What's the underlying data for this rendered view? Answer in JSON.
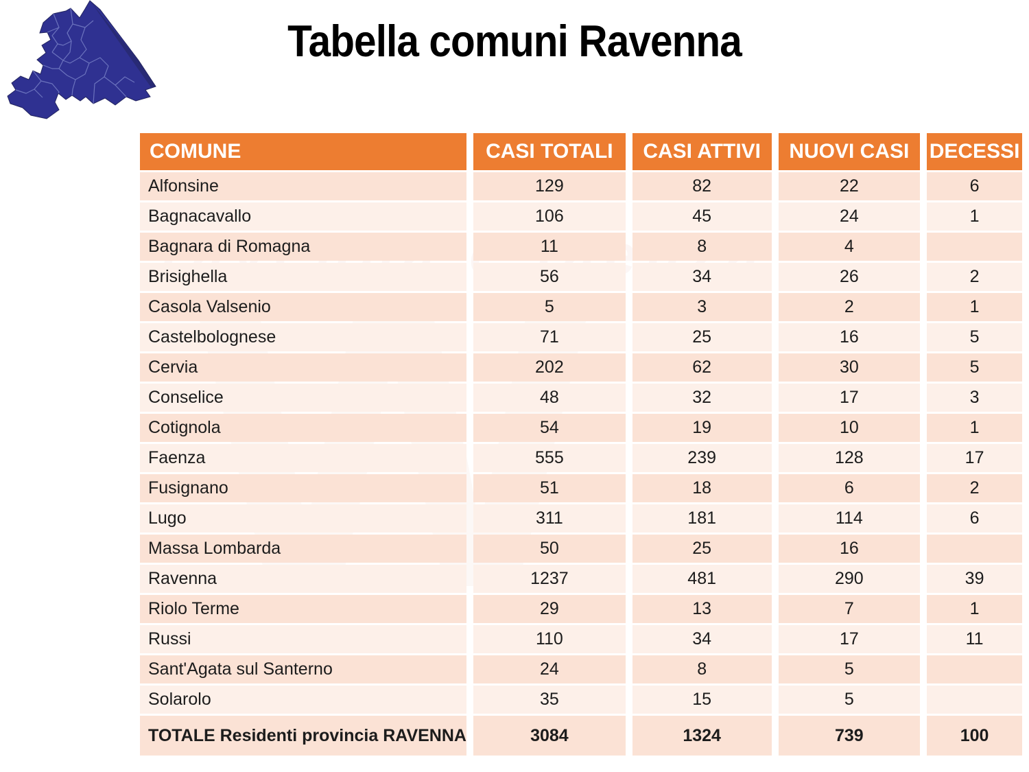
{
  "title": "Tabella comuni Ravenna",
  "watermark": {
    "band_text": "ravenna e faenza",
    "logo_letter": "W"
  },
  "colors": {
    "header_bg": "#ED7D31",
    "header_text": "#FFFFFF",
    "row_dark": "#FBE2D5",
    "row_light": "#FDF0E9",
    "body_text": "#1C1C1C",
    "map_fill": "#2F3191",
    "map_border_lines": "#8089CC"
  },
  "chart_data": {
    "type": "table",
    "title": "Tabella comuni Ravenna",
    "columns": [
      "COMUNE",
      "CASI TOTALI",
      "CASI ATTIVI",
      "NUOVI CASI",
      "DECESSI"
    ],
    "rows": [
      [
        "Alfonsine",
        "129",
        "82",
        "22",
        "6"
      ],
      [
        "Bagnacavallo",
        "106",
        "45",
        "24",
        "1"
      ],
      [
        "Bagnara di Romagna",
        "11",
        "8",
        "4",
        ""
      ],
      [
        "Brisighella",
        "56",
        "34",
        "26",
        "2"
      ],
      [
        "Casola Valsenio",
        "5",
        "3",
        "2",
        "1"
      ],
      [
        "Castelbolognese",
        "71",
        "25",
        "16",
        "5"
      ],
      [
        "Cervia",
        "202",
        "62",
        "30",
        "5"
      ],
      [
        "Conselice",
        "48",
        "32",
        "17",
        "3"
      ],
      [
        "Cotignola",
        "54",
        "19",
        "10",
        "1"
      ],
      [
        "Faenza",
        "555",
        "239",
        "128",
        "17"
      ],
      [
        "Fusignano",
        "51",
        "18",
        "6",
        "2"
      ],
      [
        "Lugo",
        "311",
        "181",
        "114",
        "6"
      ],
      [
        "Massa Lombarda",
        "50",
        "25",
        "16",
        ""
      ],
      [
        "Ravenna",
        "1237",
        "481",
        "290",
        "39"
      ],
      [
        "Riolo Terme",
        "29",
        "13",
        "7",
        "1"
      ],
      [
        "Russi",
        "110",
        "34",
        "17",
        "11"
      ],
      [
        "Sant'Agata sul Santerno",
        "24",
        "8",
        "5",
        ""
      ],
      [
        "Solarolo",
        "35",
        "15",
        "5",
        ""
      ]
    ],
    "total_row": [
      "TOTALE Residenti provincia RAVENNA",
      "3084",
      "1324",
      "739",
      "100"
    ]
  }
}
